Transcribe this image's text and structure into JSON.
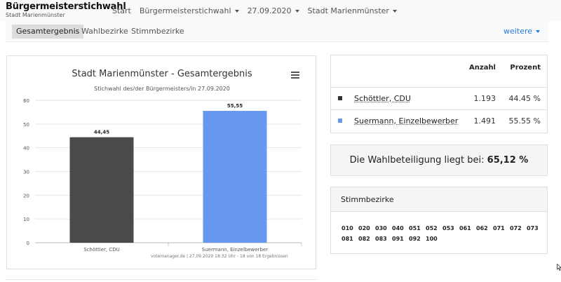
{
  "navbar": {
    "brand_title": "Bürgermeisterstichwahl",
    "brand_subtitle": "Stadt Marienmünster",
    "items": [
      {
        "label": "Start"
      },
      {
        "label": "Bürgermeisterstichwahl"
      },
      {
        "label": "27.09.2020"
      },
      {
        "label": "Stadt Marienmünster"
      }
    ]
  },
  "tabs": [
    {
      "label": "Gesamtergebnis",
      "active": true
    },
    {
      "label": "Wahlbezirke"
    },
    {
      "label": "Stimmbezirke"
    }
  ],
  "more_label": "weitere",
  "chart": {
    "credits": "votemanager.de | 27.09.2020 18:32 Uhr - 18 von 18 Ergebnissen"
  },
  "chart_data": {
    "type": "bar",
    "title": "Stadt Marienmünster - Gesamtergebnis",
    "subtitle": "Stichwahl des/der Bürgermeisters/in 27.09.2020",
    "categories": [
      "Schöttler, CDU",
      "Suermann, Einzelbewerber"
    ],
    "values": [
      44.45,
      55.55
    ],
    "value_labels": [
      "44,45",
      "55,55"
    ],
    "colors": [
      "#4a4a4a",
      "#6699ee"
    ],
    "ylim": [
      0,
      60
    ],
    "yticks": [
      0,
      10,
      20,
      30,
      40,
      50,
      60
    ],
    "grid": true,
    "xlabel": "",
    "ylabel": ""
  },
  "results": {
    "header_count": "Anzahl",
    "header_percent": "Prozent",
    "rows": [
      {
        "name": "Schöttler, CDU",
        "count": "1.193",
        "percent": "44.45 %",
        "color": "#333333"
      },
      {
        "name": "Suermann, Einzelbewerber",
        "count": "1.491",
        "percent": "55.55 %",
        "color": "#6699ee"
      }
    ]
  },
  "turnout": {
    "text": "Die Wahlbeteiligung liegt bei:",
    "value": "65,12 %"
  },
  "districts": {
    "title": "Stimmbezirke",
    "codes": [
      "010",
      "020",
      "030",
      "040",
      "051",
      "052",
      "053",
      "061",
      "062",
      "071",
      "072",
      "073",
      "081",
      "082",
      "083",
      "091",
      "092",
      "100"
    ]
  }
}
